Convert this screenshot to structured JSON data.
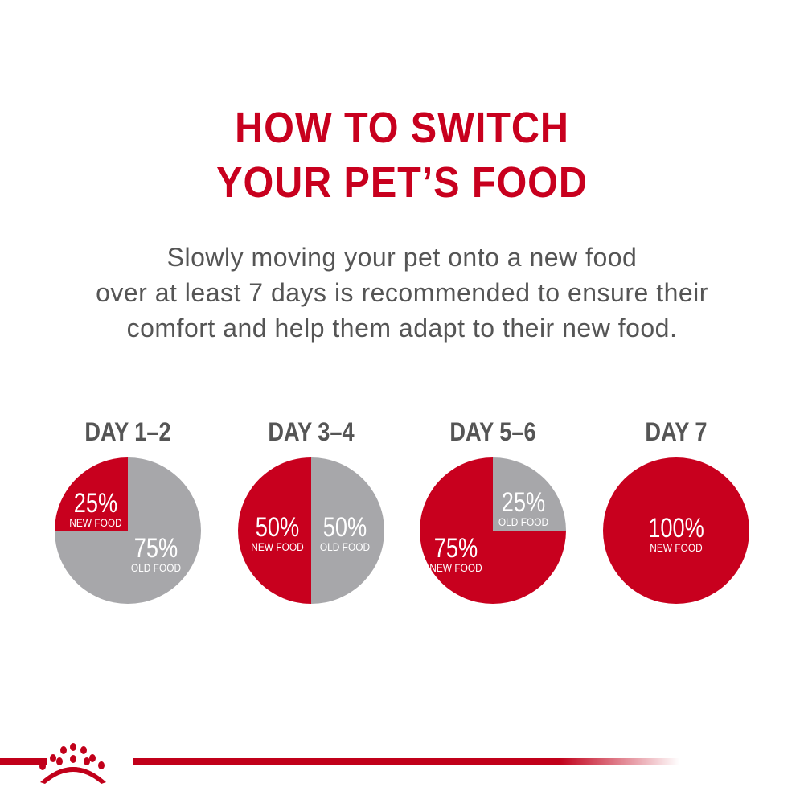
{
  "title_lines": [
    "HOW TO SWITCH",
    "YOUR PET’S FOOD"
  ],
  "subtitle_lines": [
    "Slowly moving your pet onto a new food",
    "over at least 7 days is recommended to ensure their",
    "comfort and help them adapt to their new food."
  ],
  "colors": {
    "new_food": "#c8001e",
    "old_food": "#a7a7aa",
    "heading": "#c8001e",
    "text": "#555555"
  },
  "logo": {
    "icon": "royal-canin-crown-icon"
  },
  "chart_data": [
    {
      "type": "pie",
      "title": "DAY 1–2",
      "slices": [
        {
          "label": "NEW FOOD",
          "value": 25,
          "text": "25%"
        },
        {
          "label": "OLD FOOD",
          "value": 75,
          "text": "75%"
        }
      ]
    },
    {
      "type": "pie",
      "title": "DAY 3–4",
      "slices": [
        {
          "label": "NEW FOOD",
          "value": 50,
          "text": "50%"
        },
        {
          "label": "OLD FOOD",
          "value": 50,
          "text": "50%"
        }
      ]
    },
    {
      "type": "pie",
      "title": "DAY 5–6",
      "slices": [
        {
          "label": "NEW FOOD",
          "value": 75,
          "text": "75%"
        },
        {
          "label": "OLD FOOD",
          "value": 25,
          "text": "25%"
        }
      ]
    },
    {
      "type": "pie",
      "title": "DAY 7",
      "slices": [
        {
          "label": "NEW FOOD",
          "value": 100,
          "text": "100%"
        }
      ]
    }
  ]
}
